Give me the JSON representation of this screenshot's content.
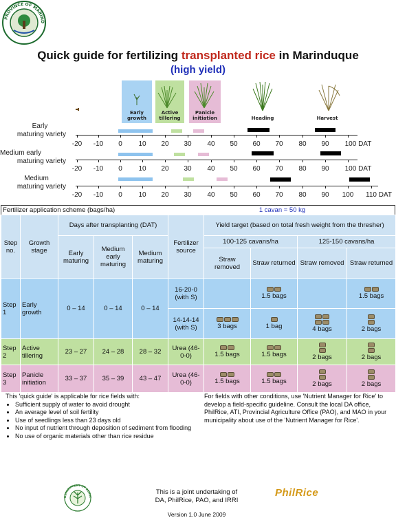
{
  "header": {
    "seal_text": "PROVINCE OF MARINDUQUE · OFFICIAL SEAL ·",
    "title_prefix": "Quick guide for fertilizing ",
    "title_highlight": "transplanted rice",
    "title_suffix": " in Marinduque",
    "subtitle": "(high yield)",
    "title_highlight_color": "#c0281c",
    "subtitle_color": "#1f2fb8"
  },
  "stages": [
    {
      "label": "Early growth",
      "bg": "#a9d3f3"
    },
    {
      "label": "Active tillering",
      "bg": "#bfe0a0"
    },
    {
      "label": "Panicle initiation",
      "bg": "#e6bcd6"
    },
    {
      "label": "Heading",
      "bg": ""
    },
    {
      "label": "Harvest",
      "bg": ""
    }
  ],
  "timeline": {
    "rows": [
      {
        "label_line1": "Early",
        "label_line2": "maturing variety",
        "ticks": [
          "-20",
          "-10",
          "0",
          "10",
          "20",
          "30",
          "40",
          "50",
          "60",
          "70",
          "80",
          "90",
          "100 DAT"
        ]
      },
      {
        "label_line1": "Medium early",
        "label_line2": "maturing variety",
        "ticks": [
          "-20",
          "-10",
          "0",
          "10",
          "20",
          "30",
          "40",
          "50",
          "60",
          "70",
          "80",
          "90",
          "100 DAT"
        ]
      },
      {
        "label_line1": "Medium",
        "label_line2": "maturing variety",
        "ticks": [
          "-20",
          "-10",
          "0",
          "10",
          "20",
          "30",
          "40",
          "50",
          "60",
          "70",
          "80",
          "90",
          "100",
          "110 DAT"
        ]
      }
    ]
  },
  "scheme": {
    "heading": "Fertilizer application scheme (bags/ha)",
    "conversion": "1 cavan = 50 kg"
  },
  "table": {
    "step_no": "Step no.",
    "growth_stage": "Growth stage",
    "days_header": "Days after transplanting (DAT)",
    "early": "Early maturing",
    "medium_early": "Medium early maturing",
    "medium": "Medium maturing",
    "fert_source": "Fertilizer source",
    "yield_target": "Yield target (based on total fresh weight from the thresher)",
    "yield_1": "100-125 cavans/ha",
    "yield_2": "125-150 cavans/ha",
    "straw_removed": "Straw removed",
    "straw_returned": "Straw returned",
    "rows": [
      {
        "step": "Step 1",
        "stage": "Early growth",
        "early": "0 – 14",
        "medium_early": "0 – 14",
        "medium": "0 – 14",
        "fert_a": "16-20-0 (with S)",
        "a_c1": "",
        "a_c2": "1.5 bags",
        "a_c3": "",
        "a_c4": "1.5 bags",
        "fert_b": "14-14-14 (with S)",
        "b_c1": "3 bags",
        "b_c2": "1 bag",
        "b_c3": "4 bags",
        "b_c4": "2 bags"
      },
      {
        "step": "Step 2",
        "stage": "Active tillering",
        "early": "23 – 27",
        "medium_early": "24 – 28",
        "medium": "28 – 32",
        "fert": "Urea (46-0-0)",
        "c1": "1.5 bags",
        "c2": "1.5 bags",
        "c3": "2 bags",
        "c4": "2 bags"
      },
      {
        "step": "Step 3",
        "stage": "Panicle initiation",
        "early": "33 – 37",
        "medium_early": "35 – 39",
        "medium": "43 – 47",
        "fert": "Urea (46-0-0)",
        "c1": "1.5 bags",
        "c2": "1.5 bags",
        "c3": "2 bags",
        "c4": "2 bags"
      }
    ]
  },
  "notes": {
    "left_intro": "This 'quick guide' is applicable for rice fields with:",
    "left_items": [
      "Sufficient supply of water to avoid drought",
      "An average level of soil fertility",
      "Use of seedlings less than 23 days old",
      "No input of nutrient through deposition of sediment from flooding",
      "No use of organic materials other than rice  residue"
    ],
    "right": "For fields with other conditions, use 'Nutrient Manager for Rice' to develop a field-specific guideline. Consult the local DA office, PhilRice, ATI, Provincial Agriculture Office (PAO), and MAO in your municipality about use of the 'Nutrient Manager for Rice'."
  },
  "footer": {
    "joint_line1": "This is a joint undertaking of",
    "joint_line2": "DA, PhilRice, PAO, and IRRI",
    "version": "Version 1.0 June 2009",
    "logo_da_text": "DEPARTMENT OF AGRICULTURE",
    "logo_philrice": "PhilRice"
  }
}
